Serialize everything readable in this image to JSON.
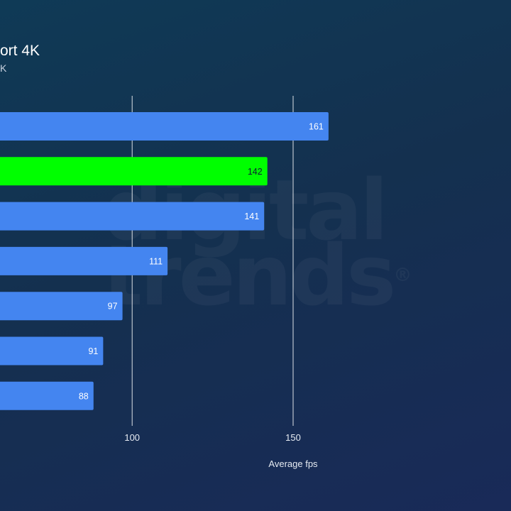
{
  "chart_data": {
    "type": "bar",
    "orientation": "horizontal",
    "title": "ort 4K",
    "subtitle": "K",
    "xlabel": "Average fps",
    "ylabel": "",
    "categories": [
      "",
      "",
      "",
      "",
      "",
      "",
      ""
    ],
    "values": [
      161,
      142,
      141,
      111,
      97,
      91,
      88
    ],
    "highlight_index": 1,
    "xlim": [
      0,
      162
    ],
    "xticks": [
      50,
      100,
      150
    ],
    "grid": true,
    "colors": {
      "bar": "#4485f0",
      "highlight": "#00ff00",
      "gridline": "#ffffff",
      "background": "#14304f"
    }
  },
  "watermark": {
    "line1": "digital",
    "line2": "trends",
    "mark": "®"
  }
}
